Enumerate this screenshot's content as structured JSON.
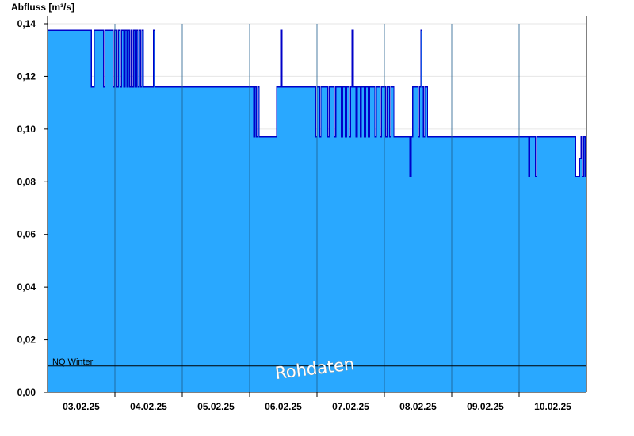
{
  "chart_data": {
    "type": "area",
    "ylabel": "Abfluss [m³/s]",
    "ylim": [
      0,
      0.14
    ],
    "ytick_values": [
      0,
      0.02,
      0.04,
      0.06,
      0.08,
      0.1,
      0.12,
      0.14
    ],
    "ytick_labels": [
      "0,00",
      "0,02",
      "0,04",
      "0,06",
      "0,08",
      "0,10",
      "0,12",
      "0,14"
    ],
    "xlim_days": [
      0,
      8
    ],
    "xticks": [
      {
        "label": "03.02.25",
        "day": 0.5
      },
      {
        "label": "04.02.25",
        "day": 1.5
      },
      {
        "label": "05.02.25",
        "day": 2.5
      },
      {
        "label": "06.02.25",
        "day": 3.5
      },
      {
        "label": "07.02.25",
        "day": 4.5
      },
      {
        "label": "08.02.25",
        "day": 5.5
      },
      {
        "label": "09.02.25",
        "day": 6.5
      },
      {
        "label": "10.02.25",
        "day": 7.5
      }
    ],
    "day_boundaries": [
      1,
      2,
      3,
      4,
      5,
      6,
      7
    ],
    "grid": true,
    "fill_color": "#29a8ff",
    "line_color": "#0000c8",
    "reference_line": {
      "label": "NQ Winter",
      "value": 0.01
    },
    "watermark": "Rohdaten",
    "series": [
      {
        "values_step": [
          [
            0.0,
            0.1375
          ],
          [
            0.65,
            0.116
          ],
          [
            0.69,
            0.1375
          ],
          [
            0.83,
            0.116
          ],
          [
            0.85,
            0.1375
          ],
          [
            0.97,
            0.116
          ],
          [
            0.99,
            0.1375
          ],
          [
            1.03,
            0.116
          ],
          [
            1.05,
            0.1375
          ],
          [
            1.08,
            0.116
          ],
          [
            1.1,
            0.1375
          ],
          [
            1.13,
            0.116
          ],
          [
            1.15,
            0.1375
          ],
          [
            1.18,
            0.116
          ],
          [
            1.2,
            0.1375
          ],
          [
            1.22,
            0.116
          ],
          [
            1.24,
            0.1375
          ],
          [
            1.26,
            0.116
          ],
          [
            1.28,
            0.1375
          ],
          [
            1.3,
            0.116
          ],
          [
            1.32,
            0.1375
          ],
          [
            1.34,
            0.116
          ],
          [
            1.36,
            0.1375
          ],
          [
            1.38,
            0.116
          ],
          [
            1.4,
            0.1375
          ],
          [
            1.42,
            0.116
          ],
          [
            1.57,
            0.1375
          ],
          [
            1.59,
            0.116
          ],
          [
            3.06,
            0.097
          ],
          [
            3.08,
            0.116
          ],
          [
            3.1,
            0.097
          ],
          [
            3.12,
            0.116
          ],
          [
            3.14,
            0.097
          ],
          [
            3.4,
            0.116
          ],
          [
            3.46,
            0.1375
          ],
          [
            3.48,
            0.116
          ],
          [
            3.98,
            0.097
          ],
          [
            4.0,
            0.116
          ],
          [
            4.04,
            0.097
          ],
          [
            4.06,
            0.116
          ],
          [
            4.16,
            0.097
          ],
          [
            4.18,
            0.116
          ],
          [
            4.26,
            0.097
          ],
          [
            4.28,
            0.116
          ],
          [
            4.36,
            0.097
          ],
          [
            4.38,
            0.116
          ],
          [
            4.42,
            0.097
          ],
          [
            4.44,
            0.116
          ],
          [
            4.48,
            0.097
          ],
          [
            4.5,
            0.116
          ],
          [
            4.52,
            0.1375
          ],
          [
            4.54,
            0.116
          ],
          [
            4.58,
            0.097
          ],
          [
            4.6,
            0.116
          ],
          [
            4.64,
            0.097
          ],
          [
            4.66,
            0.116
          ],
          [
            4.7,
            0.097
          ],
          [
            4.72,
            0.116
          ],
          [
            4.76,
            0.097
          ],
          [
            4.78,
            0.116
          ],
          [
            4.86,
            0.097
          ],
          [
            4.88,
            0.116
          ],
          [
            4.94,
            0.097
          ],
          [
            4.96,
            0.116
          ],
          [
            5.02,
            0.097
          ],
          [
            5.04,
            0.116
          ],
          [
            5.08,
            0.097
          ],
          [
            5.1,
            0.116
          ],
          [
            5.14,
            0.097
          ],
          [
            5.38,
            0.082
          ],
          [
            5.4,
            0.097
          ],
          [
            5.42,
            0.116
          ],
          [
            5.5,
            0.097
          ],
          [
            5.52,
            0.116
          ],
          [
            5.54,
            0.1375
          ],
          [
            5.56,
            0.116
          ],
          [
            5.58,
            0.097
          ],
          [
            5.6,
            0.116
          ],
          [
            5.64,
            0.097
          ],
          [
            7.14,
            0.082
          ],
          [
            7.16,
            0.097
          ],
          [
            7.24,
            0.082
          ],
          [
            7.26,
            0.097
          ],
          [
            7.84,
            0.082
          ],
          [
            7.9,
            0.089
          ],
          [
            7.92,
            0.097
          ],
          [
            7.94,
            0.082
          ],
          [
            7.96,
            0.097
          ],
          [
            7.98,
            0.082
          ]
        ]
      }
    ]
  }
}
